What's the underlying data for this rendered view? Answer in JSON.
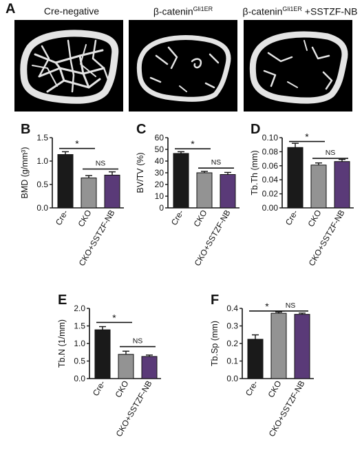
{
  "panel_a": {
    "letter": "A",
    "titles": [
      {
        "text": "Cre-negative",
        "sup": "",
        "suffix": ""
      },
      {
        "text": "β-catenin",
        "sup": "Gli1ER",
        "suffix": ""
      },
      {
        "text": "β-catenin",
        "sup": "Gli1ER",
        "suffix": " +SSTZF-NB"
      }
    ],
    "image_names": [
      "ct-image-cre-negative",
      "ct-image-b-catenin-gli1er",
      "ct-image-b-catenin-gli1er-sstzf-nb"
    ]
  },
  "colors": {
    "cre_minus": "#1a1a1a",
    "cko": "#939393",
    "cko_sstzf": "#5a3a78",
    "error_bar": "#111111",
    "bone": "#e6e6e6",
    "background_scan": "#000000"
  },
  "chart_data": [
    {
      "panel": "B",
      "type": "bar",
      "categories": [
        "Cre-",
        "CKO",
        "CKO+SSTZF-NB"
      ],
      "values": [
        1.14,
        0.64,
        0.7
      ],
      "errors": [
        0.06,
        0.05,
        0.07
      ],
      "ylabel": "BMD (g/mm³)",
      "ylim": [
        0,
        1.5
      ],
      "yticks": [
        0.0,
        0.5,
        1.0,
        1.5
      ],
      "ytick_labels": [
        "0.0",
        "0.5",
        "1.0",
        "1.5"
      ],
      "annotations": [
        {
          "text": "*",
          "from": 0,
          "to": 1,
          "y": 1.27
        },
        {
          "text": "NS",
          "from": 1,
          "to": 2,
          "y": 0.83
        }
      ]
    },
    {
      "panel": "C",
      "type": "bar",
      "categories": [
        "Cre-",
        "CKO",
        "CKO+SSTZF-NB"
      ],
      "values": [
        46.5,
        30.0,
        28.5
      ],
      "errors": [
        1.5,
        1.2,
        1.8
      ],
      "ylabel": "BV/TV  (%)",
      "ylim": [
        0,
        60
      ],
      "yticks": [
        0,
        10,
        20,
        30,
        40,
        50,
        60
      ],
      "ytick_labels": [
        "0",
        "10",
        "20",
        "30",
        "40",
        "50",
        "60"
      ],
      "annotations": [
        {
          "text": "*",
          "from": 0,
          "to": 1,
          "y": 50.5
        },
        {
          "text": "NS",
          "from": 1,
          "to": 2,
          "y": 34
        }
      ]
    },
    {
      "panel": "D",
      "type": "bar",
      "categories": [
        "Cre-",
        "CKO",
        "CKO+SSTZF-NB"
      ],
      "values": [
        0.086,
        0.061,
        0.066
      ],
      "errors": [
        0.006,
        0.003,
        0.003
      ],
      "ylabel": "Tb.Th  (mm)",
      "ylim": [
        0,
        0.1
      ],
      "yticks": [
        0.0,
        0.02,
        0.04,
        0.06,
        0.08,
        0.1
      ],
      "ytick_labels": [
        "0.00",
        "0.02",
        "0.04",
        "0.06",
        "0.08",
        "0.10"
      ],
      "annotations": [
        {
          "text": "*",
          "from": 0,
          "to": 1,
          "y": 0.0945
        },
        {
          "text": "NS",
          "from": 1,
          "to": 2,
          "y": 0.0705
        }
      ]
    },
    {
      "panel": "E",
      "type": "bar",
      "categories": [
        "Cre-",
        "CKO",
        "CKO+SSTZF-NB"
      ],
      "values": [
        1.39,
        0.69,
        0.63
      ],
      "errors": [
        0.09,
        0.09,
        0.04
      ],
      "ylabel": "Tb.N  (1/mm)",
      "ylim": [
        0,
        2.0
      ],
      "yticks": [
        0.0,
        0.5,
        1.0,
        1.5,
        2.0
      ],
      "ytick_labels": [
        "0.0",
        "0.5",
        "1.0",
        "1.5",
        "2.0"
      ],
      "annotations": [
        {
          "text": "*",
          "from": 0,
          "to": 1,
          "y": 1.6
        },
        {
          "text": "NS",
          "from": 1,
          "to": 2,
          "y": 0.91
        }
      ]
    },
    {
      "panel": "F",
      "type": "bar",
      "categories": [
        "Cre-",
        "CKO",
        "CKO+SSTZF-NB"
      ],
      "values": [
        0.224,
        0.372,
        0.366
      ],
      "errors": [
        0.025,
        0.007,
        0.007
      ],
      "ylabel": "Tb.Sp  (mm)",
      "ylim": [
        0,
        0.4
      ],
      "yticks": [
        0.0,
        0.1,
        0.2,
        0.3,
        0.4
      ],
      "ytick_labels": [
        "0.0",
        "0.1",
        "0.2",
        "0.3",
        "0.4"
      ],
      "annotations": [
        {
          "text": "*",
          "from": 0,
          "to": 1,
          "y": 0.385
        },
        {
          "text": "NS",
          "from": 1,
          "to": 2,
          "y": 0.385
        }
      ]
    }
  ]
}
